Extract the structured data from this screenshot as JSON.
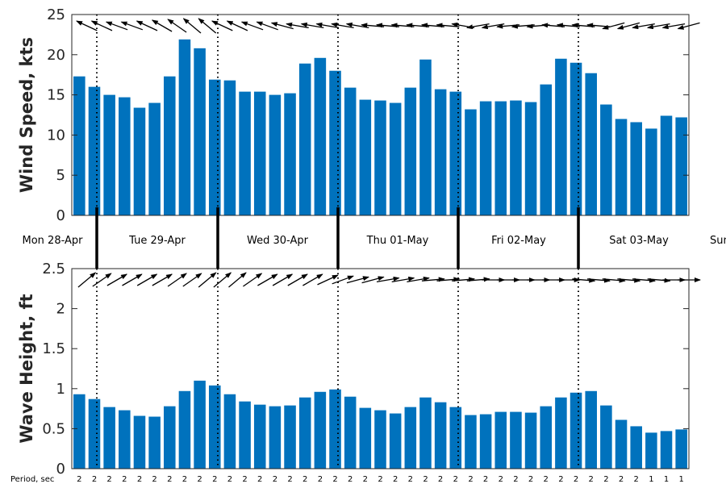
{
  "chart_data": [
    {
      "type": "bar",
      "ylabel": "Wind Speed, kts",
      "ylim": [
        0,
        25
      ],
      "yticks": [
        0,
        5,
        10,
        15,
        20,
        25
      ],
      "grid": false,
      "bar_color": "#0072BD",
      "values": [
        17.3,
        16.0,
        15.0,
        14.7,
        13.4,
        14.0,
        17.3,
        21.9,
        20.8,
        16.9,
        16.8,
        15.4,
        15.4,
        15.0,
        15.2,
        18.9,
        19.6,
        18.0,
        15.9,
        14.4,
        14.3,
        14.0,
        15.9,
        19.4,
        15.7,
        15.4,
        13.2,
        14.2,
        14.2,
        14.3,
        14.1,
        16.3,
        19.5,
        19.0,
        17.7,
        13.8,
        12.0,
        11.6,
        10.8,
        12.4,
        12.2
      ],
      "direction_arrows": "wind direction arrows shown above each bar (pointing roughly toward the west / west-south-west)"
    },
    {
      "type": "bar",
      "ylabel": "Wave Height, ft",
      "ylim": [
        0,
        2.5
      ],
      "yticks": [
        "0",
        "0.5",
        "1",
        "1.5",
        "2",
        "2.5"
      ],
      "grid": false,
      "bar_color": "#0072BD",
      "values": [
        0.93,
        0.87,
        0.77,
        0.73,
        0.66,
        0.65,
        0.78,
        0.97,
        1.1,
        1.04,
        0.93,
        0.84,
        0.8,
        0.78,
        0.79,
        0.89,
        0.96,
        0.99,
        0.9,
        0.76,
        0.73,
        0.69,
        0.77,
        0.89,
        0.83,
        0.77,
        0.67,
        0.68,
        0.71,
        0.71,
        0.7,
        0.78,
        0.89,
        0.95,
        0.97,
        0.79,
        0.61,
        0.53,
        0.45,
        0.47,
        0.49
      ],
      "direction_arrows": "wave direction arrows shown above each bar (pointing roughly toward the east / north-east)"
    }
  ],
  "days": [
    "Mon 28-Apr",
    "Tue 29-Apr",
    "Wed 30-Apr",
    "Thu 01-May",
    "Fri 02-May",
    "Sat 03-May",
    "Sun"
  ],
  "period": {
    "label": "Period, sec",
    "values": [
      "2",
      "2",
      "2",
      "2",
      "2",
      "2",
      "2",
      "2",
      "2",
      "2",
      "2",
      "2",
      "2",
      "2",
      "2",
      "2",
      "2",
      "2",
      "2",
      "2",
      "2",
      "2",
      "2",
      "2",
      "2",
      "2",
      "2",
      "2",
      "2",
      "2",
      "2",
      "2",
      "2",
      "2",
      "2",
      "2",
      "2",
      "2",
      "1",
      "1",
      "1"
    ]
  },
  "wind_arrow_angles_deg": [
    205,
    205,
    200,
    200,
    205,
    210,
    215,
    220,
    220,
    205,
    205,
    200,
    200,
    195,
    190,
    190,
    190,
    190,
    190,
    185,
    185,
    185,
    185,
    185,
    185,
    190,
    170,
    170,
    175,
    175,
    175,
    185,
    185,
    185,
    185,
    165,
    165,
    170,
    170,
    170,
    165
  ],
  "wave_arrow_angles_deg": [
    -40,
    -35,
    -30,
    -30,
    -30,
    -30,
    -35,
    -35,
    -40,
    -40,
    -40,
    -35,
    -30,
    -30,
    -30,
    -30,
    -25,
    -20,
    -15,
    -15,
    -10,
    -10,
    -10,
    -5,
    -5,
    -5,
    -5,
    0,
    0,
    0,
    0,
    0,
    0,
    5,
    5,
    5,
    5,
    5,
    5,
    0,
    0
  ],
  "colors": {
    "bar": "#0072BD",
    "axis": "#262626",
    "marker": "#000000"
  }
}
